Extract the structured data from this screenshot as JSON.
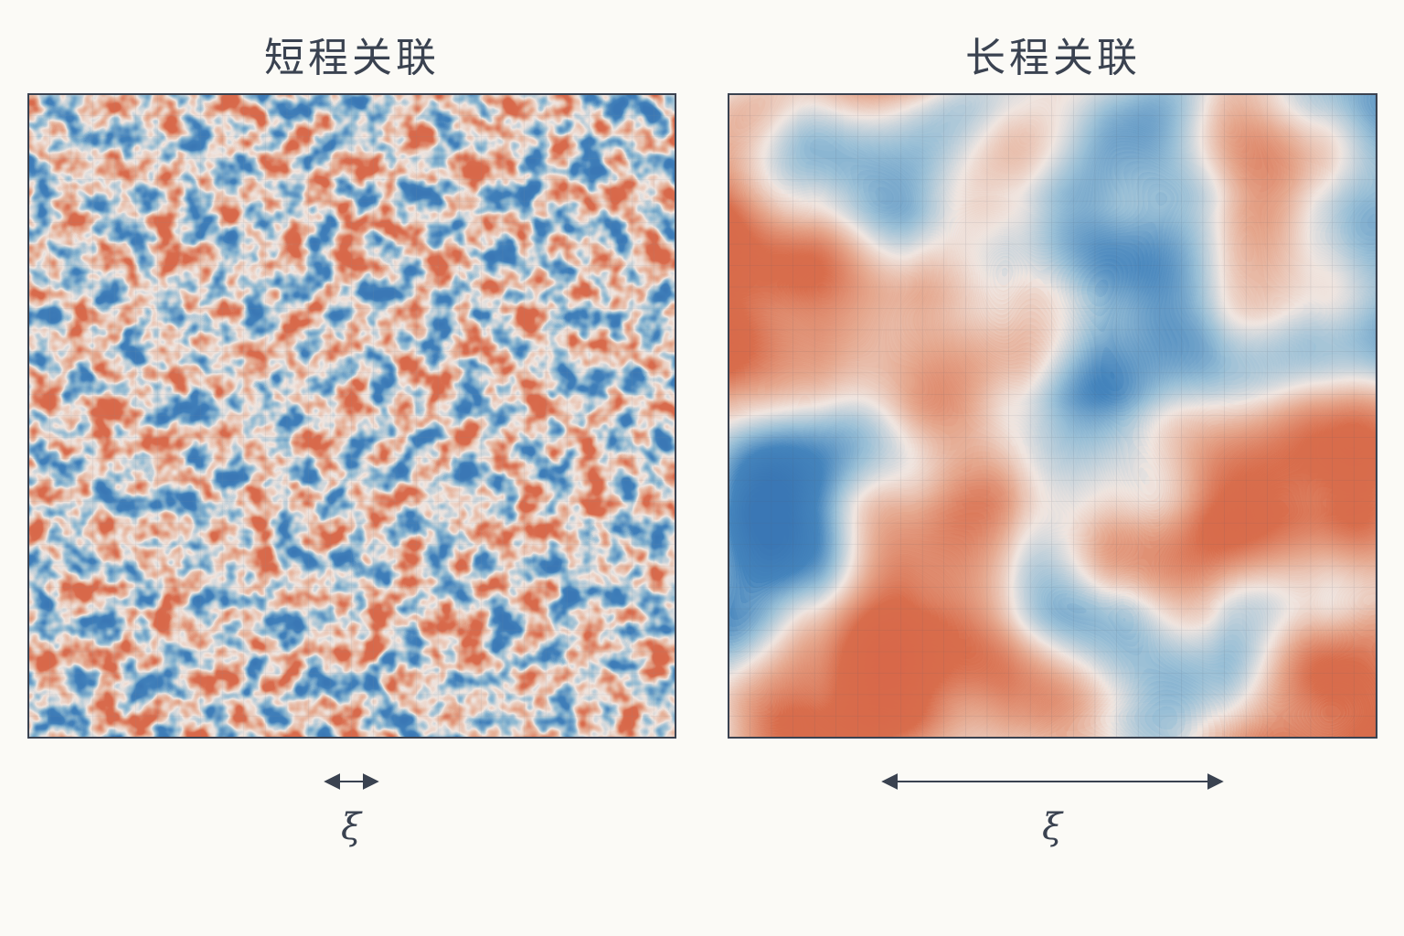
{
  "panels": [
    {
      "title": "短程关联",
      "xi_label": "ξ"
    },
    {
      "title": "长程关联",
      "xi_label": "ξ"
    }
  ]
}
